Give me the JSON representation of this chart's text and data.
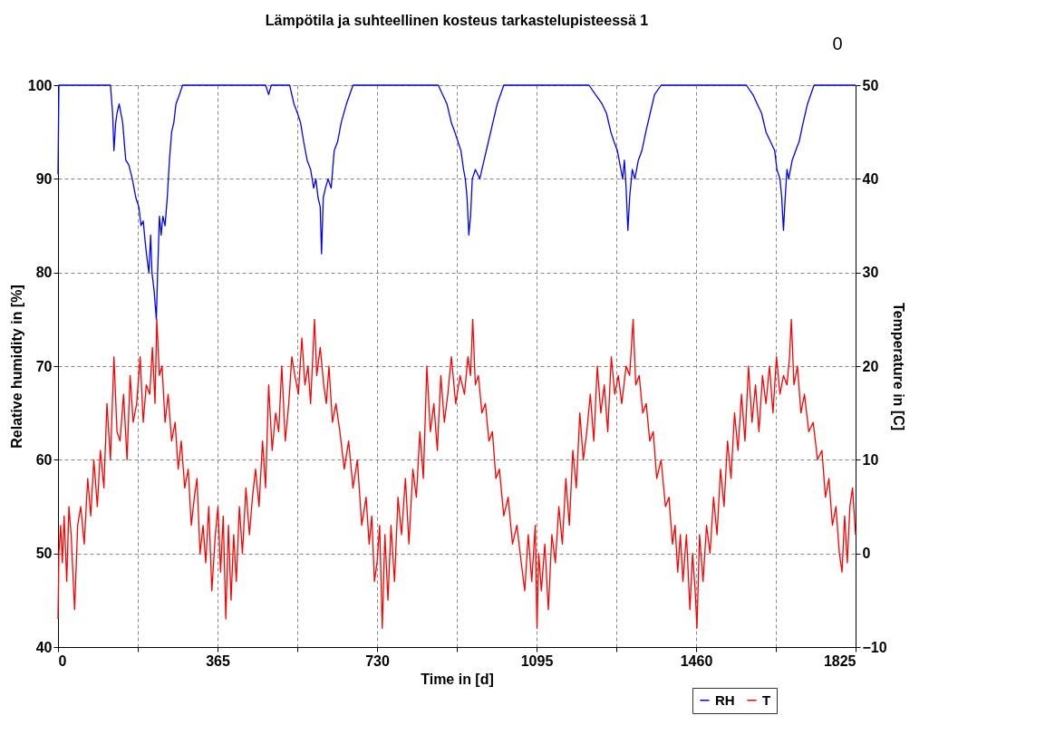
{
  "chart_data": {
    "type": "line",
    "title": "Lämpötila ja suhteellinen kosteus tarkastelupisteessä 1",
    "xlabel": "Time in [d]",
    "ylabel": "Relative humidity in [%]",
    "y2label": "Temperature in [C]",
    "annotations": [
      "0"
    ],
    "xlim": [
      0,
      1825
    ],
    "xticks": [
      0,
      {
        "value": 182.5,
        "label": null
      },
      365,
      {
        "value": 547.5,
        "label": null
      },
      730,
      {
        "value": 912.5,
        "label": null
      },
      1095,
      {
        "value": 1277.5,
        "label": null
      },
      1460,
      {
        "value": 1642.5,
        "label": null
      },
      1825
    ],
    "ylim": [
      40,
      100
    ],
    "yticks": [
      40,
      50,
      60,
      70,
      80,
      90,
      100
    ],
    "y2lim": [
      -10,
      50
    ],
    "y2ticks": [
      -10,
      0,
      10,
      20,
      30,
      40,
      50
    ],
    "grid": true,
    "legend": "bottom right",
    "line_style": "solid",
    "series": [
      {
        "name": "RH",
        "color": "#0000ff",
        "x": [
          0,
          2,
          5,
          120,
          125,
          128,
          132,
          135,
          140,
          148,
          155,
          162,
          170,
          178,
          185,
          190,
          195,
          200,
          205,
          208,
          212,
          215,
          220,
          225,
          228,
          232,
          236,
          240,
          245,
          250,
          255,
          260,
          265,
          270,
          278,
          285,
          475,
          482,
          488,
          530,
          540,
          548,
          555,
          562,
          570,
          578,
          585,
          590,
          595,
          600,
          603,
          607,
          612,
          618,
          625,
          632,
          640,
          648,
          660,
          675,
          870,
          880,
          890,
          900,
          908,
          915,
          922,
          928,
          932,
          936,
          940,
          944,
          948,
          955,
          965,
          975,
          985,
          995,
          1005,
          1020,
          1215,
          1230,
          1245,
          1255,
          1265,
          1272,
          1280,
          1288,
          1292,
          1296,
          1300,
          1304,
          1308,
          1314,
          1320,
          1328,
          1336,
          1345,
          1355,
          1365,
          1380,
          1575,
          1590,
          1600,
          1610,
          1620,
          1630,
          1640,
          1645,
          1652,
          1656,
          1660,
          1664,
          1668,
          1672,
          1680,
          1688,
          1696,
          1705,
          1715,
          1730,
          1825
        ],
        "values": [
          90.5,
          100,
          100,
          100,
          97,
          93,
          96,
          97,
          98,
          96,
          92,
          91.5,
          90,
          88,
          87,
          85,
          85.5,
          83,
          81,
          80,
          84,
          80,
          78,
          75,
          80,
          86,
          84,
          86,
          85,
          88,
          92,
          95,
          96,
          98,
          99,
          100,
          100,
          99,
          100,
          100,
          98,
          97,
          96,
          94,
          92,
          91,
          89,
          90,
          88,
          87,
          82,
          88,
          89,
          90,
          89,
          93,
          94,
          96,
          98,
          100,
          100,
          99,
          98,
          96,
          95,
          94,
          93,
          91,
          90,
          88,
          84,
          86,
          90,
          91,
          90,
          92,
          94,
          96,
          98,
          100,
          100,
          99,
          98,
          97,
          95,
          94,
          93,
          91,
          90,
          92,
          89,
          84.5,
          88,
          91,
          90,
          92,
          93,
          95,
          97,
          99,
          100,
          100,
          99,
          98,
          97,
          95,
          94,
          93,
          91,
          90,
          88,
          84.5,
          88,
          91,
          90,
          92,
          93,
          94,
          96,
          98,
          100,
          100
        ]
      },
      {
        "name": "T",
        "color": "#ff0000",
        "axis": "y2",
        "x": [
          0,
          2,
          6,
          10,
          14,
          20,
          25,
          30,
          38,
          45,
          52,
          60,
          68,
          75,
          82,
          90,
          97,
          105,
          112,
          120,
          128,
          135,
          142,
          150,
          158,
          165,
          172,
          180,
          188,
          195,
          202,
          210,
          216,
          222,
          226,
          232,
          238,
          245,
          252,
          260,
          268,
          275,
          282,
          290,
          298,
          305,
          312,
          318,
          325,
          332,
          338,
          345,
          352,
          360,
          366,
          372,
          378,
          384,
          390,
          396,
          402,
          408,
          415,
          422,
          430,
          438,
          445,
          452,
          460,
          468,
          475,
          482,
          490,
          498,
          505,
          512,
          520,
          528,
          535,
          542,
          550,
          558,
          565,
          572,
          578,
          583,
          587,
          592,
          600,
          608,
          614,
          620,
          628,
          636,
          645,
          655,
          665,
          675,
          685,
          695,
          705,
          712,
          718,
          724,
          730,
          736,
          742,
          748,
          755,
          762,
          770,
          778,
          786,
          795,
          803,
          812,
          820,
          828,
          836,
          844,
          852,
          860,
          868,
          876,
          884,
          892,
          900,
          910,
          920,
          930,
          938,
          944,
          949,
          955,
          962,
          970,
          978,
          986,
          994,
          1002,
          1010,
          1020,
          1030,
          1040,
          1050,
          1060,
          1068,
          1076,
          1084,
          1092,
          1096,
          1100,
          1106,
          1114,
          1122,
          1130,
          1138,
          1146,
          1154,
          1162,
          1170,
          1178,
          1186,
          1194,
          1202,
          1210,
          1218,
          1226,
          1234,
          1242,
          1250,
          1258,
          1266,
          1274,
          1282,
          1290,
          1300,
          1308,
          1316,
          1322,
          1330,
          1338,
          1346,
          1354,
          1362,
          1370,
          1380,
          1390,
          1398,
          1406,
          1412,
          1418,
          1424,
          1430,
          1438,
          1446,
          1452,
          1458,
          1462,
          1468,
          1476,
          1484,
          1492,
          1500,
          1508,
          1516,
          1524,
          1532,
          1540,
          1548,
          1556,
          1564,
          1572,
          1580,
          1588,
          1596,
          1604,
          1612,
          1620,
          1628,
          1636,
          1644,
          1652,
          1660,
          1668,
          1674,
          1678,
          1684,
          1692,
          1700,
          1708,
          1718,
          1728,
          1738,
          1748,
          1756,
          1764,
          1772,
          1780,
          1788,
          1794,
          1800,
          1806,
          1812,
          1818,
          1825
        ],
        "values": [
          -7,
          0,
          3,
          -1,
          4,
          -3,
          5,
          2,
          -6,
          3,
          5,
          1,
          8,
          4,
          10,
          5,
          11,
          7,
          16,
          10,
          21,
          13,
          12,
          17,
          10,
          19,
          14,
          16,
          21,
          14,
          18,
          17,
          22,
          16,
          25,
          19,
          20,
          14,
          17,
          12,
          14,
          9,
          12,
          7,
          9,
          3,
          6,
          8,
          0,
          3,
          -1,
          5,
          -4,
          2,
          5,
          -2,
          4,
          -7,
          3,
          -5,
          2,
          -3,
          5,
          0,
          7,
          2,
          6,
          9,
          5,
          12,
          7,
          18,
          11,
          15,
          13,
          20,
          12,
          16,
          21,
          19,
          17,
          23,
          18,
          20,
          16,
          21,
          25,
          19,
          22,
          18,
          16,
          20,
          14,
          16,
          13,
          9,
          12,
          7,
          10,
          3,
          6,
          1,
          4,
          -3,
          -1,
          3,
          -8,
          2,
          -5,
          3,
          -3,
          6,
          2,
          8,
          1,
          9,
          6,
          13,
          8,
          20,
          13,
          16,
          11,
          19,
          14,
          17,
          21,
          16,
          19,
          17,
          21,
          19,
          25,
          18,
          19,
          15,
          16,
          12,
          13,
          8,
          9,
          4,
          6,
          1,
          3,
          -1,
          -4,
          2,
          -3,
          3,
          -8,
          0,
          -4,
          1,
          -6,
          2,
          -1,
          5,
          1,
          8,
          3,
          11,
          7,
          15,
          10,
          13,
          17,
          12,
          20,
          15,
          18,
          13,
          21,
          17,
          19,
          16,
          20,
          19,
          25,
          18,
          19,
          15,
          16,
          12,
          13,
          8,
          10,
          5,
          6,
          1,
          3,
          -2,
          2,
          -3,
          2,
          -6,
          0,
          -4,
          -8,
          2,
          -3,
          3,
          0,
          6,
          2,
          9,
          5,
          12,
          8,
          15,
          11,
          17,
          12,
          20,
          14,
          18,
          13,
          19,
          16,
          20,
          15,
          21,
          17,
          19,
          18,
          21,
          25,
          18,
          20,
          15,
          17,
          13,
          14,
          10,
          11,
          6,
          8,
          3,
          5,
          0,
          -2,
          4,
          -1,
          5,
          7,
          2
        ]
      }
    ]
  }
}
